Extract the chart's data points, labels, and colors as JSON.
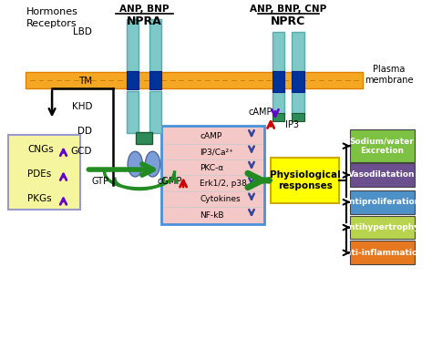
{
  "bg_color": "#ffffff",
  "receptor_colors": {
    "cylinder_body": "#7ec8c8",
    "tm_band": "#003399",
    "dd_region": "#2e8b57",
    "gcd_ellipse": "#7b9ed9"
  },
  "labels": {
    "hormones": "Hormones",
    "receptors": "Receptors",
    "npra_hormone": "ANP, BNP",
    "npra": "NPRA",
    "nprc_hormone": "ANP, BNP, CNP",
    "nprc": "NPRC",
    "plasma_membrane": "Plasma\nmembrane",
    "lbd": "LBD",
    "tm": "TM",
    "khd": "KHD",
    "dd": "DD",
    "gcd": "GCD",
    "gtp": "GTP",
    "cgmp": "cGMP",
    "camp_nprc": "cAMP",
    "ip3_nprc": "IP3",
    "cngs": "CNGs",
    "pdes": "PDEs",
    "pkgs": "PKGs",
    "camp_box": "cAMP",
    "ip3ca": "IP3/Ca²⁺",
    "pkca": "PKC-α",
    "erk": "Erk1/2, p38",
    "cytokines": "Cytokines",
    "nfkb": "NF-kB",
    "physio": "Physiological\nresponses",
    "sodium": "Sodium/water\nExcretion",
    "vasodilation": "Vasodilatation",
    "antiproliferation": "Antiproliferation",
    "antihypertrophy": "Antihypertrophy",
    "antiinflammation": "Anti-inflammation"
  },
  "response_box_colors": {
    "sodium": "#7dc242",
    "vasodilation": "#6b4f8e",
    "antiproliferation": "#4e90c8",
    "antihypertrophy": "#b8d44e",
    "antiinflammation": "#e87820"
  },
  "left_box_color": "#f5f5a0",
  "left_box_border": "#9999cc",
  "middle_box_bg": "#f5c8c8",
  "middle_box_border": "#4a90d9",
  "physio_box_color": "#ffff00",
  "physio_box_border": "#ccaa00",
  "membrane_color": "#f5a623",
  "membrane_border": "#e08000",
  "green_arrow": "#228B22",
  "red_arrow": "#cc0000",
  "purple_arrow": "#6600cc",
  "blue_arrow": "#334499"
}
